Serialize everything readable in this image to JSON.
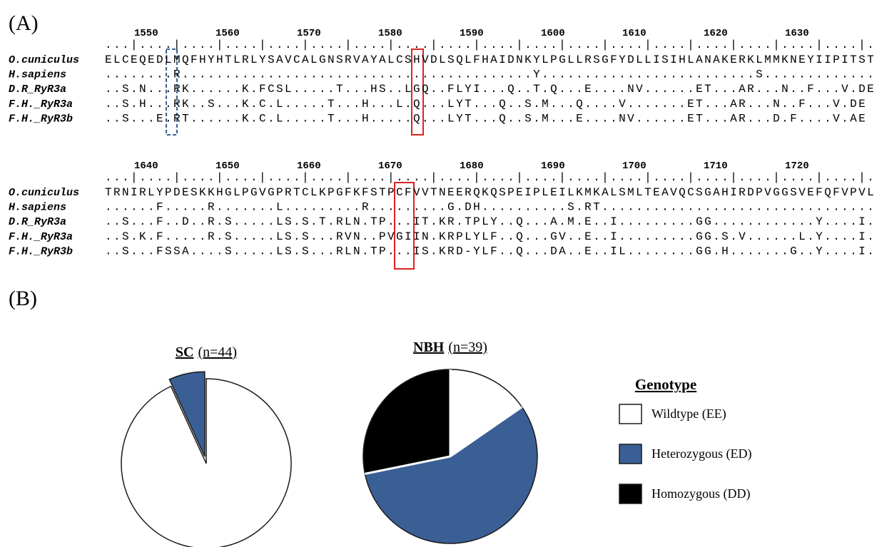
{
  "alignment": {
    "label": "(A)",
    "blocks": [
      {
        "positions": [
          1550,
          1560,
          1570,
          1580,
          1590,
          1600,
          1610,
          1620,
          1630
        ],
        "ruler": "...|....|....|....|....|....|....|....|....|....|....|....|....|....|....|....|....|....|.",
        "rows": [
          {
            "name": "O.cuniculus",
            "sequence": "ELCEQEDLMQFHYHTLRLYSAVCALGNSRVAYALCSHVDLSQLFHAIDNKYLPGLLRSGFYDLLISIHLANAKERKLMMKNEYIIPITST"
          },
          {
            "name": "H.sapiens",
            "sequence": "........R.........................................Y.........................S............."
          },
          {
            "name": "D.R_RyR3a",
            "sequence": "..S.N...RK......K.FCSL.....T...HS..LGQ..FLYI...Q..T.Q...E....NV......ET...AR...N..F...V.DE"
          },
          {
            "name": "F.H._RyR3a",
            "sequence": "..S.H...RK..S...K.C.L.....T...H...L.Q...LYT...Q..S.M...Q....V.......ET...AR...N..F...V.DE"
          },
          {
            "name": "F.H._RyR3b",
            "sequence": "..S...E.RT......K.C.L.....T...H.....Q...LYT...Q..S.M...E....NV......ET...AR...D.F....V.AE"
          }
        ]
      },
      {
        "positions": [
          1640,
          1650,
          1660,
          1670,
          1680,
          1690,
          1700,
          1710,
          1720
        ],
        "ruler": "...|....|....|....|....|....|....|....|....|....|....|....|....|....|....|....|....|....|.",
        "rows": [
          {
            "name": "O.cuniculus",
            "sequence": "TRNIRLYPDESKKHGLPGVGPRTCLKPGFKFSTPCFVVTNEERQKQSPEIPLEILKMKALSMLTEAVQCSGAHIRDPVGGSVEFQFVPVL"
          },
          {
            "name": "H.sapiens",
            "sequence": "......F.....R.......L.........R.........G.DH..........S.RT................................"
          },
          {
            "name": "D.R_RyR3a",
            "sequence": "..S...F..D..R.S.....LS.S.T.RLN.TP...IT.KR.TPLY..Q...A.M.E..I.........GG............Y....I."
          },
          {
            "name": "F.H._RyR3a",
            "sequence": "..S.K.F.....R.S.....LS.S...RVN..PVGIIN.KRPLYLF..Q...GV..E..I.........GG.S.V......L.Y....I."
          },
          {
            "name": "F.H._RyR3b",
            "sequence": "..S...FSSA....S.....LS.S...RLN.TP...IS.KRD-YLF..Q...DA..E..IL........GG.H.......G..Y....I."
          }
        ]
      }
    ]
  },
  "panel_b_label": "(B)",
  "legend_title": "Genotype",
  "chart_data": [
    {
      "type": "pie",
      "title": "SC",
      "subtitle": "(n=44)",
      "categories": [
        "Wildtype (EE)",
        "Heterozygous (ED)",
        "Homozygous (DD)"
      ],
      "values": [
        41,
        3,
        0
      ],
      "colors": [
        "#ffffff",
        "#3a5f95",
        "#000000"
      ]
    },
    {
      "type": "pie",
      "title": "NBH",
      "subtitle": "(n=39)",
      "categories": [
        "Wildtype (EE)",
        "Heterozygous (ED)",
        "Homozygous (DD)"
      ],
      "values": [
        6,
        22,
        11
      ],
      "colors": [
        "#ffffff",
        "#3a5f95",
        "#000000"
      ]
    }
  ]
}
